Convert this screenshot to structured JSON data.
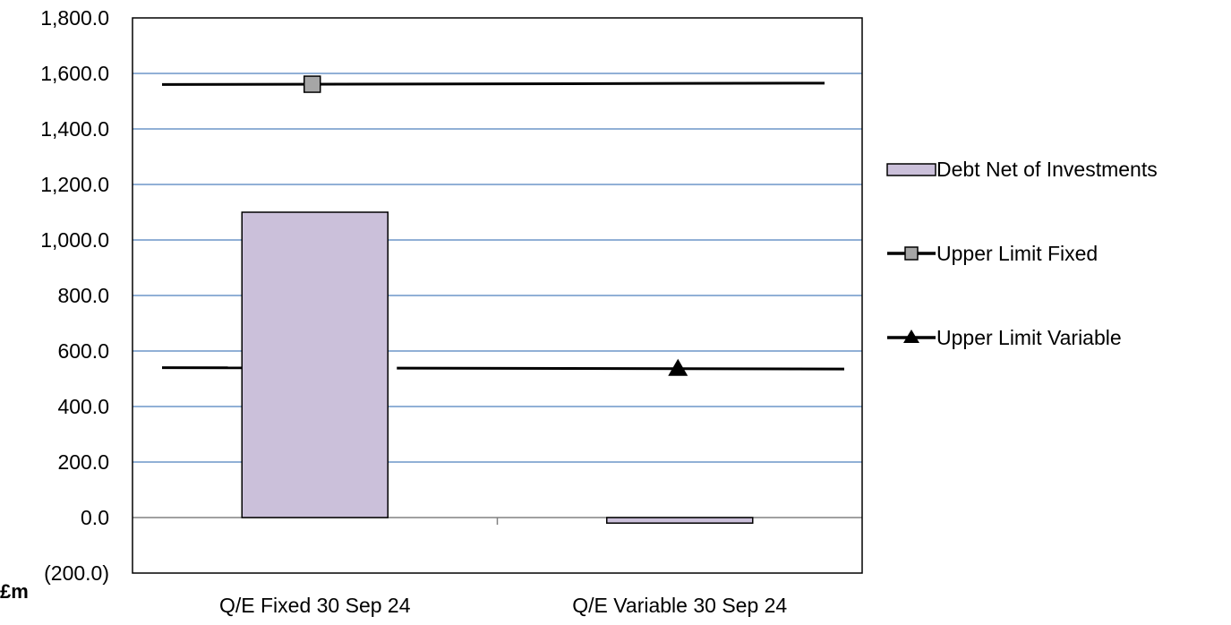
{
  "chart_data": {
    "type": "bar",
    "categories": [
      "Q/E Fixed 30 Sep 24",
      "Q/E Variable 30 Sep 24"
    ],
    "ylim": [
      -200,
      1800
    ],
    "y_ticks": [
      "(200.0)",
      "0.0",
      "200.0",
      "400.0",
      "600.0",
      "800.0",
      "1,000.0",
      "1,200.0",
      "1,400.0",
      "1,600.0",
      "1,800.0"
    ],
    "y_tick_values": [
      -200,
      0,
      200,
      400,
      600,
      800,
      1000,
      1200,
      1400,
      1600,
      1800
    ],
    "unit_label": "£m",
    "grid": true,
    "legend_position": "right",
    "series": [
      {
        "name": "Debt Net of Investments",
        "kind": "bar",
        "values": [
          1100,
          -20
        ]
      },
      {
        "name": "Upper Limit Fixed",
        "kind": "line",
        "marker": "square",
        "values": [
          1560,
          1565
        ]
      },
      {
        "name": "Upper Limit Variable",
        "kind": "line",
        "marker": "triangle",
        "values": [
          540,
          535
        ]
      }
    ],
    "colors": {
      "bar_fill": "#cbc0da",
      "bar_stroke": "#000000",
      "line": "#000000",
      "square_marker": "#a6a6a6",
      "grid": "#4f81bd",
      "negative_tick": "#ff0000"
    }
  }
}
